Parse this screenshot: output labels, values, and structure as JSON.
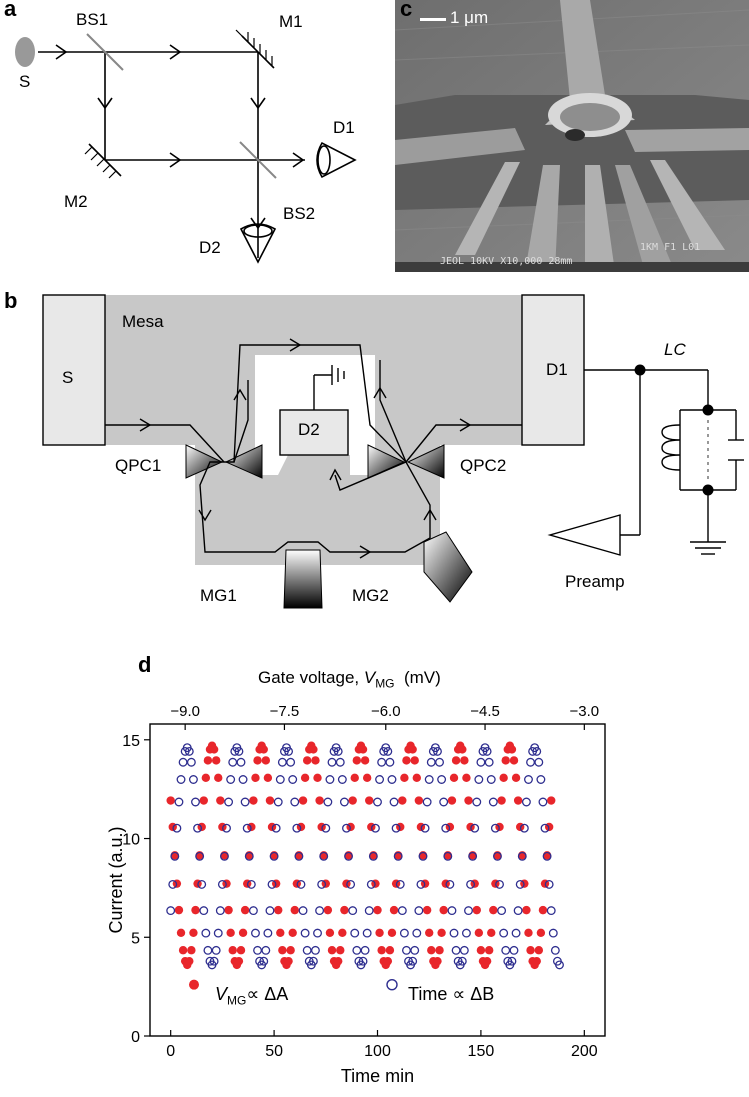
{
  "panel_a": {
    "label": "a",
    "source": "S",
    "bs1": "BS1",
    "bs2": "BS2",
    "m1": "M1",
    "m2": "M2",
    "d1": "D1",
    "d2": "D2"
  },
  "panel_b": {
    "label": "b",
    "mesa": "Mesa",
    "source": "S",
    "d1": "D1",
    "d2": "D2",
    "qpc1": "QPC1",
    "qpc2": "QPC2",
    "mg1": "MG1",
    "mg2": "MG2",
    "lc_letters": "LC",
    "preamp": "Preamp"
  },
  "panel_c": {
    "label": "c",
    "scale_bar": "1 μm",
    "sem_footer": "JEOL   10KV   X10,000  28mm",
    "sem_scale": "1KM   F1 L01"
  },
  "panel_d": {
    "label": "d",
    "top_axis_label_prefix": "Gate voltage, ",
    "top_axis_var": "V",
    "top_axis_sub": "MG",
    "top_axis_unit": "(mV)",
    "legend_1_var": "V",
    "legend_1_sub": "MG",
    "legend_1_rest": "∝ ΔA",
    "legend_2": "Time ∝ ΔB"
  },
  "chart_data": {
    "type": "scatter",
    "xlabel": "Time  min",
    "ylabel": "Current (a.u.)",
    "xlim": [
      0,
      200
    ],
    "ylim": [
      0,
      15
    ],
    "x_ticks": [
      0,
      50,
      100,
      150,
      200
    ],
    "y_ticks": [
      0,
      5,
      10,
      15
    ],
    "top_axis": {
      "ticks": [
        "−9.0",
        "−7.5",
        "−6.0",
        "−4.5",
        "−3.0"
      ],
      "positions_x": [
        7,
        55,
        104,
        152,
        200
      ]
    },
    "series": [
      {
        "name": "VMG ∝ ΔA",
        "marker": "filled-circle",
        "color": "#e8262b",
        "x_range": [
          0,
          184
        ],
        "period": 24,
        "phase_peak_x": 44,
        "y_min": 3.6,
        "y_max": 14.7
      },
      {
        "name": "Time ∝ ΔB",
        "marker": "open-circle",
        "color": "#2e2e8f",
        "x_range": [
          0,
          188
        ],
        "period": 24,
        "phase_peak_x": 32,
        "y_min": 3.6,
        "y_max": 14.6
      }
    ]
  }
}
